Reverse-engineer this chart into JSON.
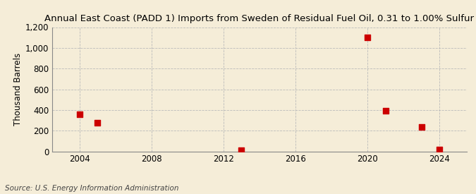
{
  "title": "Annual East Coast (PADD 1) Imports from Sweden of Residual Fuel Oil, 0.31 to 1.00% Sulfur",
  "ylabel": "Thousand Barrels",
  "source": "Source: U.S. Energy Information Administration",
  "background_color": "#f5edd8",
  "plot_background_color": "#f5edd8",
  "data_points": [
    {
      "year": 2004,
      "value": 358
    },
    {
      "year": 2005,
      "value": 275
    },
    {
      "year": 2013,
      "value": 10
    },
    {
      "year": 2020,
      "value": 1101
    },
    {
      "year": 2021,
      "value": 390
    },
    {
      "year": 2023,
      "value": 233
    },
    {
      "year": 2024,
      "value": 20
    }
  ],
  "marker_color": "#cc0000",
  "marker_size": 36,
  "xlim": [
    2002.5,
    2025.5
  ],
  "ylim": [
    0,
    1200
  ],
  "yticks": [
    0,
    200,
    400,
    600,
    800,
    1000,
    1200
  ],
  "xticks": [
    2004,
    2008,
    2012,
    2016,
    2020,
    2024
  ],
  "grid_color": "#bbbbbb",
  "grid_style": "--",
  "title_fontsize": 9.5,
  "axis_fontsize": 8.5,
  "source_fontsize": 7.5
}
